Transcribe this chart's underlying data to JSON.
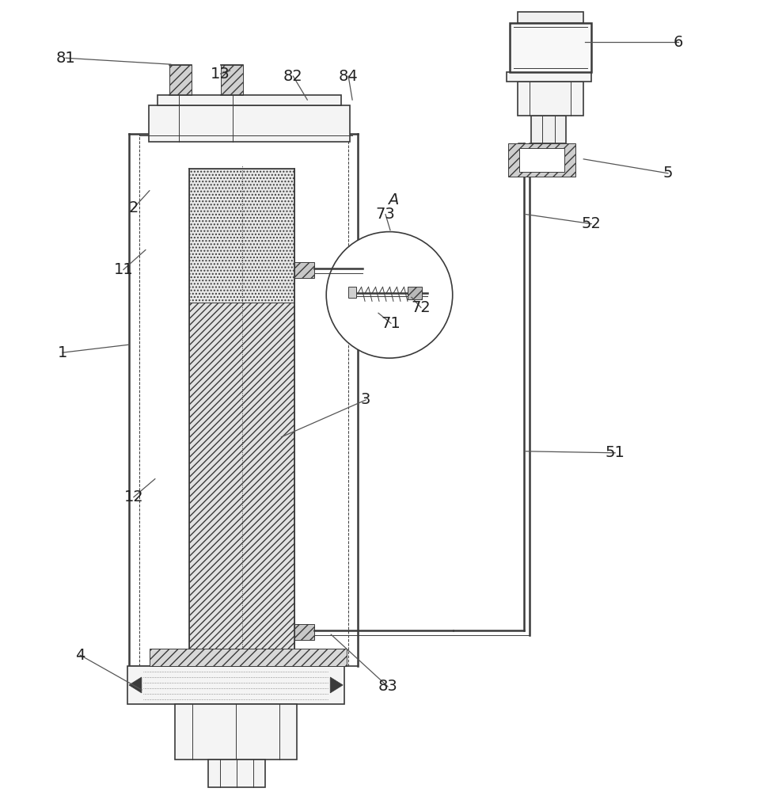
{
  "bg_color": "#ffffff",
  "line_color": "#3a3a3a",
  "label_color": "#222222",
  "figsize": [
    9.7,
    10.0
  ],
  "dpi": 100,
  "lw_thin": 0.7,
  "lw_med": 1.2,
  "lw_thick": 1.8
}
